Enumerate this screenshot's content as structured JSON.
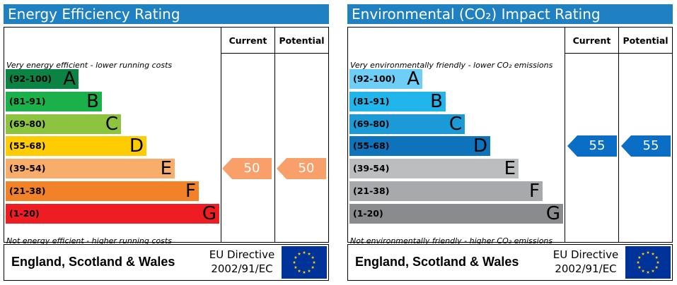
{
  "colors": {
    "title_bar": "#1f80c2",
    "ee_bands": [
      "#0b8344",
      "#1bb14a",
      "#8cc43f",
      "#ffcc02",
      "#f9ad6a",
      "#f28228",
      "#ee1d24"
    ],
    "ei_bands": [
      "#6dcff6",
      "#22b5eb",
      "#1c9ad6",
      "#0f73bb",
      "#bbbdbf",
      "#a7a9ac",
      "#8a8b8e"
    ],
    "ee_arrow": "#f9a06a",
    "ei_arrow": "#0a6ec7"
  },
  "icons": {
    "eu_flag": "eu-flag-icon"
  },
  "chart_data": [
    {
      "type": "bar",
      "title": "Energy Efficiency Rating",
      "columns": [
        "Current",
        "Potential"
      ],
      "top_caption": "Very energy efficient - lower running costs",
      "bottom_caption": "Not energy efficient - higher running costs",
      "bands": [
        {
          "range": "(92-100)",
          "letter": "A"
        },
        {
          "range": "(81-91)",
          "letter": "B"
        },
        {
          "range": "(69-80)",
          "letter": "C"
        },
        {
          "range": "(55-68)",
          "letter": "D"
        },
        {
          "range": "(39-54)",
          "letter": "E"
        },
        {
          "range": "(21-38)",
          "letter": "F"
        },
        {
          "range": "(1-20)",
          "letter": "G"
        }
      ],
      "current": 50,
      "potential": 50,
      "footer": {
        "region": "England, Scotland & Wales",
        "directive_line1": "EU Directive",
        "directive_line2": "2002/91/EC"
      }
    },
    {
      "type": "bar",
      "title": "Environmental (CO₂) Impact Rating",
      "columns": [
        "Current",
        "Potential"
      ],
      "top_caption": "Very environmentally friendly - lower CO₂ emissions",
      "bottom_caption": "Not environmentally friendly - higher CO₂ emissions",
      "bands": [
        {
          "range": "(92-100)",
          "letter": "A"
        },
        {
          "range": "(81-91)",
          "letter": "B"
        },
        {
          "range": "(69-80)",
          "letter": "C"
        },
        {
          "range": "(55-68)",
          "letter": "D"
        },
        {
          "range": "(39-54)",
          "letter": "E"
        },
        {
          "range": "(21-38)",
          "letter": "F"
        },
        {
          "range": "(1-20)",
          "letter": "G"
        }
      ],
      "current": 55,
      "potential": 55,
      "footer": {
        "region": "England, Scotland & Wales",
        "directive_line1": "EU Directive",
        "directive_line2": "2002/91/EC"
      }
    }
  ]
}
